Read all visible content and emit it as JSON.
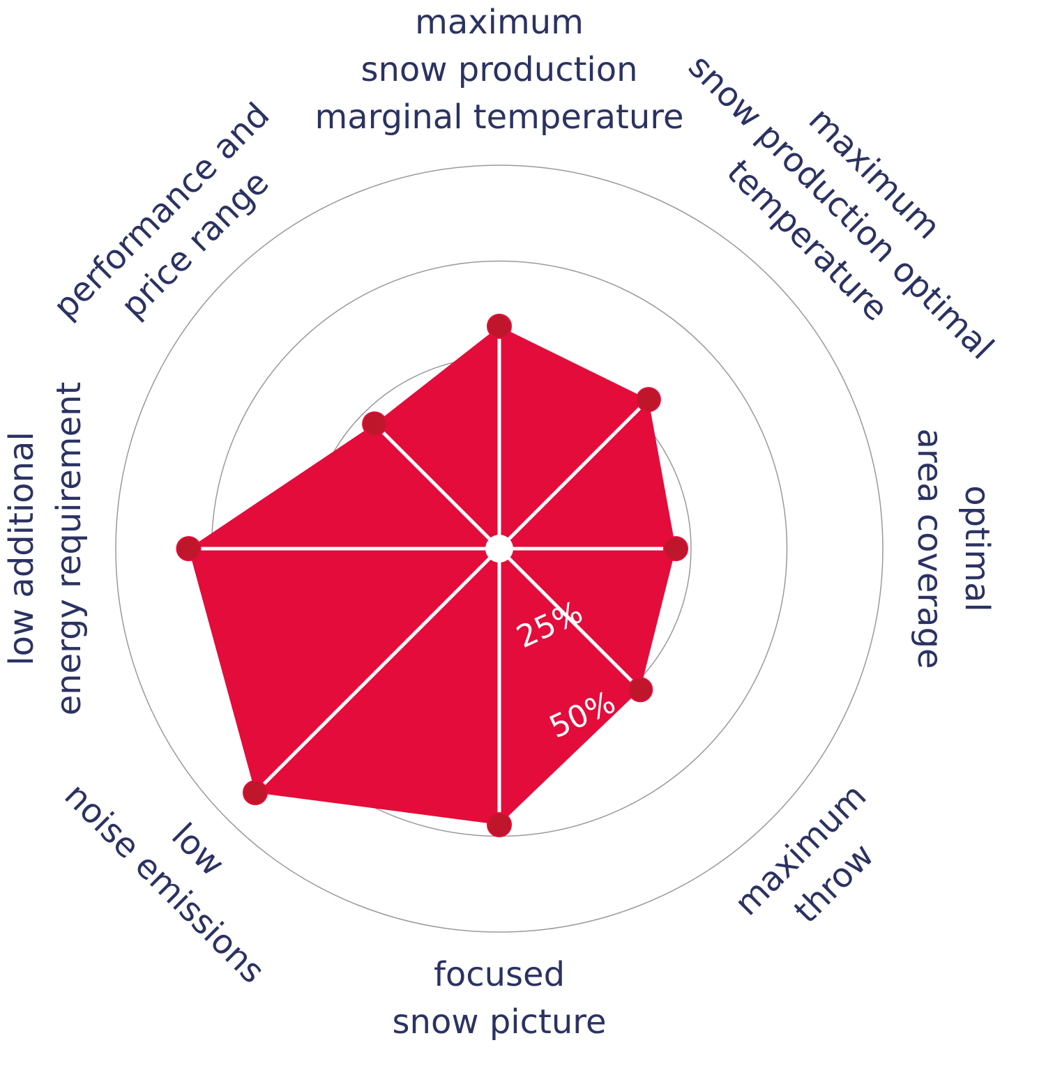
{
  "chart_data": {
    "type": "radar",
    "axes": [
      [
        "maximum",
        "snow production",
        "marginal temperature"
      ],
      [
        "maximum",
        "snow production optimal",
        "temperature"
      ],
      [
        "optimal",
        "area coverage"
      ],
      [
        "maximum",
        "throw"
      ],
      [
        "focused",
        "snow picture"
      ],
      [
        "low",
        "noise emissions"
      ],
      [
        "low additional",
        "energy requirement"
      ],
      [
        "performance and",
        "price range"
      ]
    ],
    "values": [
      58,
      55,
      46,
      52,
      72,
      90,
      81,
      46
    ],
    "color": "#e30c3a",
    "marker_color": "#c0162b",
    "rlim": [
      0,
      100
    ],
    "rticks": [
      {
        "value": 25,
        "label": "25%"
      },
      {
        "value": 50,
        "label": "50%"
      },
      75,
      100
    ],
    "grid": true
  }
}
